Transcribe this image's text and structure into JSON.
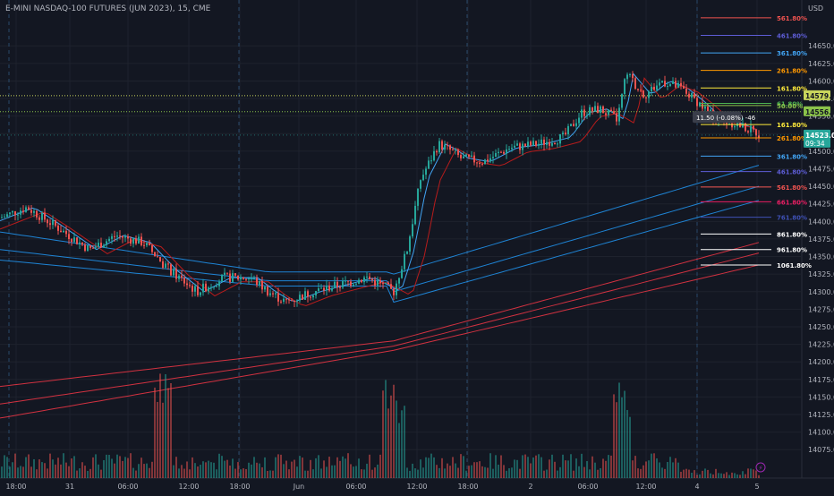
{
  "header": {
    "title": "E-MINI NASDAQ-100 FUTURES (JUN 2023), 15, CME"
  },
  "theme": {
    "background": "#131722",
    "grid": "#1e222d",
    "up_color": "#26a69a",
    "down_color": "#ef5350",
    "axis_text": "#b2b5be",
    "session_separator": "#2a4a6b"
  },
  "chart_data": {
    "type": "candlestick",
    "symbol": "E-MINI NASDAQ-100 FUTURES (JUN 2023)",
    "interval": "15",
    "exchange": "CME",
    "currency": "USD",
    "ylim": [
      14060,
      14700
    ],
    "y_ticks": [
      14650,
      14625,
      14600,
      14575,
      14550,
      14525,
      14500,
      14475,
      14450,
      14425,
      14400,
      14375,
      14350,
      14325,
      14300,
      14275,
      14250,
      14225,
      14200,
      14175,
      14150,
      14125,
      14100,
      14075
    ],
    "x_ticks": [
      "18:00",
      "31",
      "06:00",
      "12:00",
      "18:00",
      "Jun",
      "06:00",
      "12:00",
      "18:00",
      "2",
      "06:00",
      "12:00",
      "4",
      "5"
    ],
    "price_labels": [
      {
        "label": "USD",
        "price": 14691
      },
      {
        "label": "14579.00",
        "price": 14579,
        "color": "#c9d65c"
      },
      {
        "label": "14556.25",
        "price": 14556.25,
        "color": "#8bc34a"
      },
      {
        "label": "14523.00",
        "price": 14523,
        "sublabel": "09:34",
        "color": "#26a69a"
      }
    ],
    "measure_label": "11.50 (-0.08%) -46",
    "fib_levels": [
      {
        "label": "561.80%",
        "price": 14690,
        "color": "#ef5350"
      },
      {
        "label": "461.80%",
        "price": 14665,
        "color": "#5e5dd6"
      },
      {
        "label": "361.80%",
        "price": 14640,
        "color": "#42a5f5"
      },
      {
        "label": "261.80%",
        "price": 14615,
        "color": "#ff9800"
      },
      {
        "label": "161.80%",
        "price": 14590,
        "color": "#ffeb3b"
      },
      {
        "label": "61.80%",
        "price": 14568,
        "color": "#4caf50"
      },
      {
        "label": "50.00%",
        "price": 14565,
        "color": "#8bc34a"
      },
      {
        "label": "161.80%",
        "price": 14538,
        "color": "#ffeb3b"
      },
      {
        "label": "261.80%",
        "price": 14519,
        "color": "#ff9800"
      },
      {
        "label": "361.80%",
        "price": 14493,
        "color": "#42a5f5"
      },
      {
        "label": "461.80%",
        "price": 14471,
        "color": "#5e5dd6"
      },
      {
        "label": "561.80%",
        "price": 14449,
        "color": "#ef5350"
      },
      {
        "label": "661.80%",
        "price": 14428,
        "color": "#e91e63"
      },
      {
        "label": "761.80%",
        "price": 14406,
        "color": "#3f51b5"
      },
      {
        "label": "861.80%",
        "price": 14382,
        "color": "#ffffff"
      },
      {
        "label": "961.80%",
        "price": 14360,
        "color": "#ffffff"
      },
      {
        "label": "1061.80%",
        "price": 14338,
        "color": "#ffffff"
      }
    ]
  }
}
